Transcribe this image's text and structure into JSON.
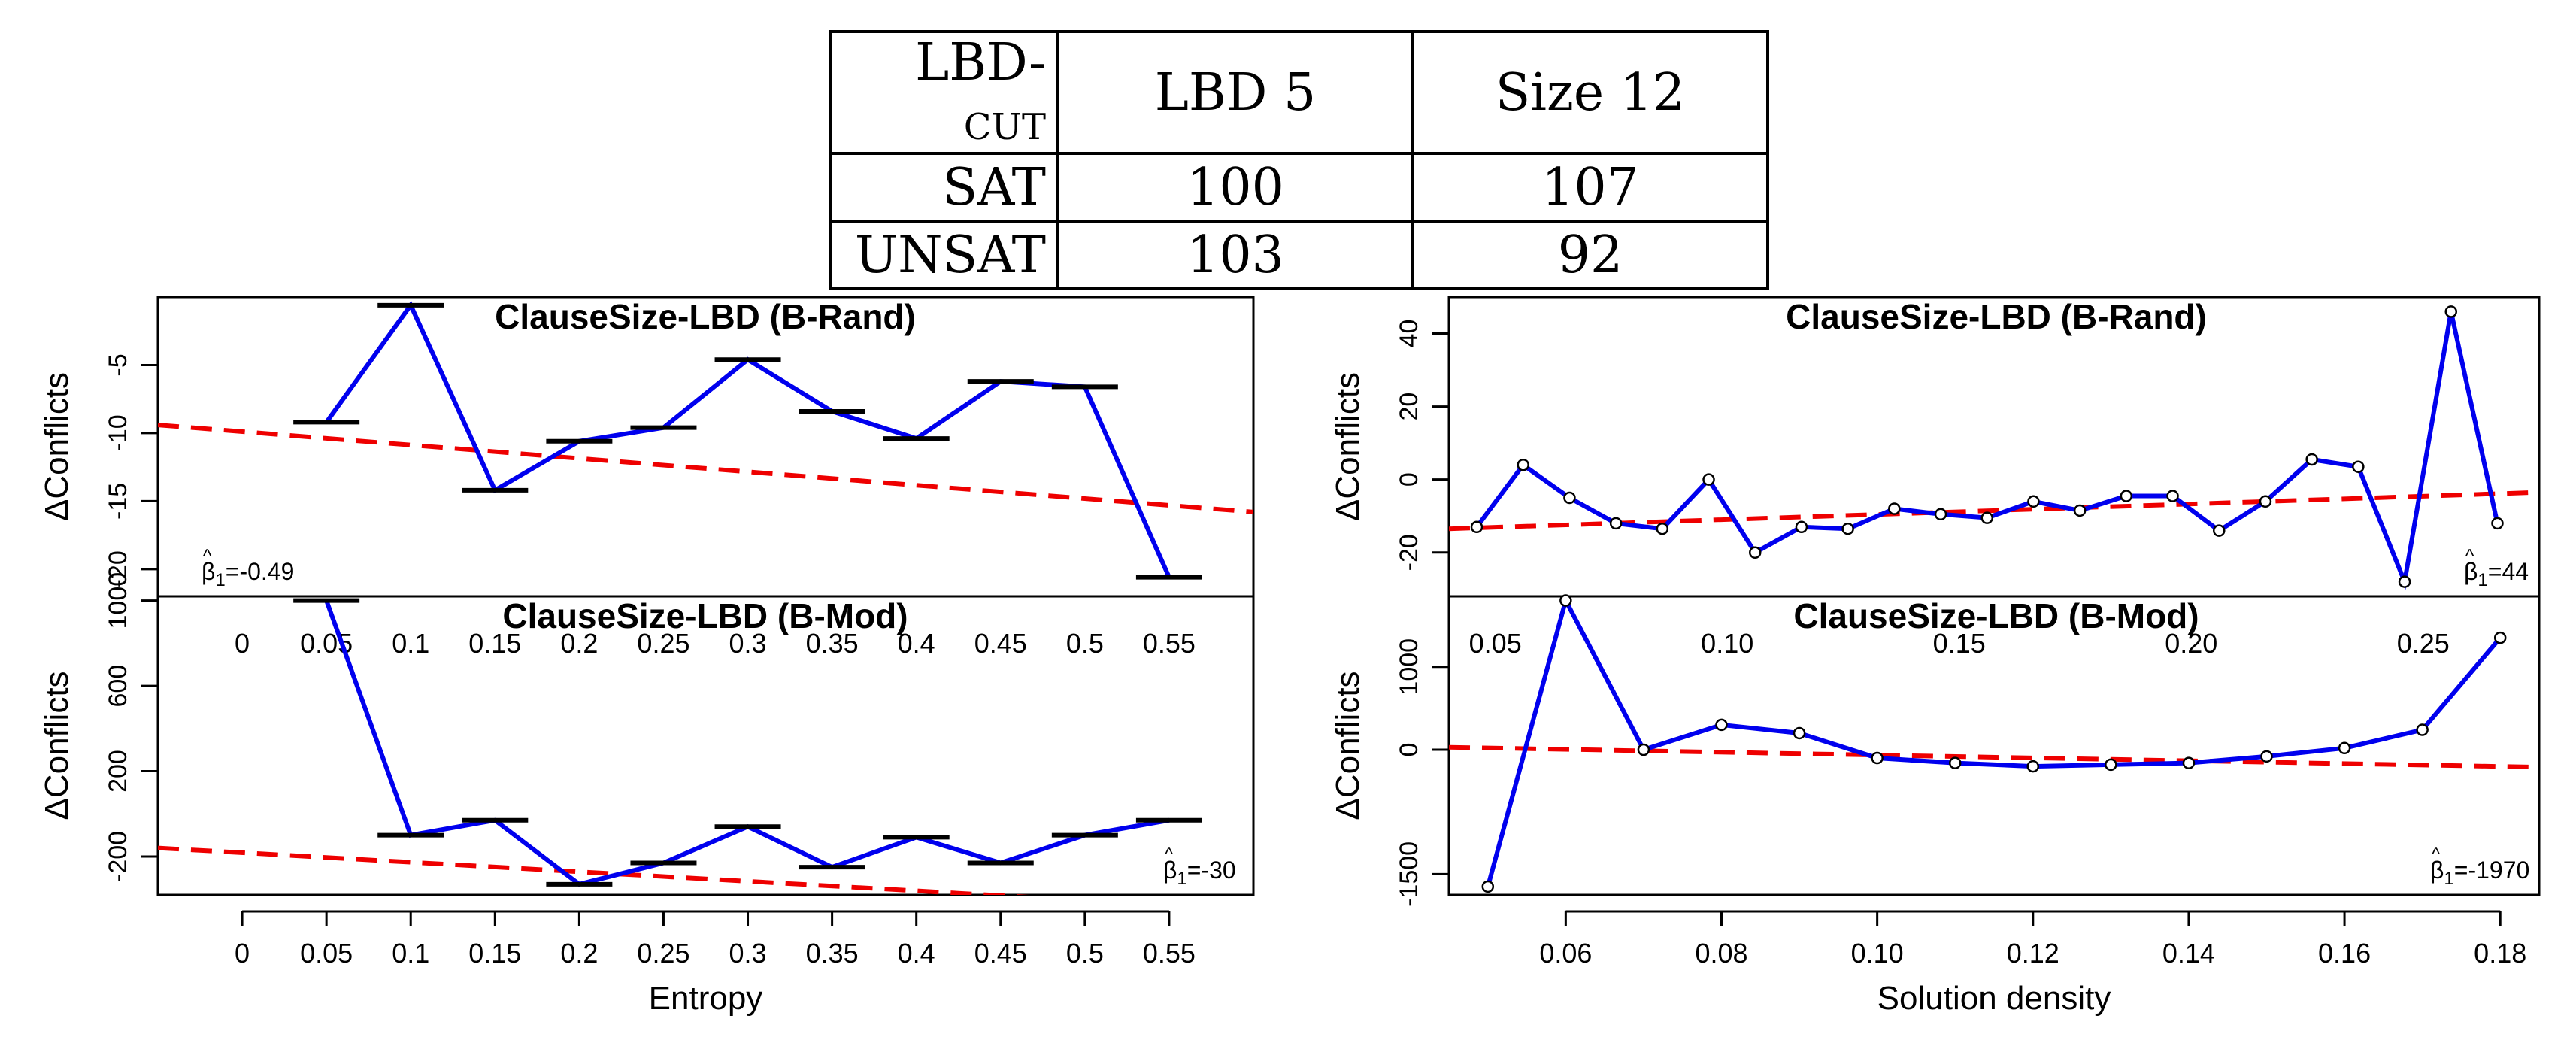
{
  "table": {
    "header": [
      "LBD-cut",
      "LBD 5",
      "Size 12"
    ],
    "rows": [
      {
        "label": "SAT",
        "values": [
          "100",
          "107"
        ]
      },
      {
        "label": "UNSAT",
        "values": [
          "103",
          "92"
        ]
      }
    ]
  },
  "colors": {
    "line": "#0000ee",
    "fit": "#ee0000",
    "axis": "#000000",
    "bar": "#000000"
  },
  "chart_data": [
    {
      "id": "entropy_rand",
      "type": "line",
      "title": "ClauseSize-LBD (B-Rand)",
      "xlabel": "Entropy",
      "ylabel": "ΔConflicts",
      "xlim": [
        -0.05,
        0.6
      ],
      "ylim": [
        -22,
        0
      ],
      "x": [
        0.05,
        0.1,
        0.15,
        0.2,
        0.25,
        0.3,
        0.35,
        0.4,
        0.45,
        0.5,
        0.55
      ],
      "y": [
        -9.2,
        -0.6,
        -14.2,
        -10.6,
        -9.6,
        -4.6,
        -8.4,
        -10.4,
        -6.2,
        -6.6,
        -20.6
      ],
      "markers": "bar",
      "yticks": [
        -5,
        -10,
        -15,
        -20
      ],
      "ytick_labels": [
        "-5",
        "-10",
        "-15",
        "-20"
      ],
      "fit": {
        "x": [
          -0.05,
          0.6
        ],
        "y": [
          -9.4,
          -15.8
        ]
      },
      "beta_label": "1=-0.49"
    },
    {
      "id": "entropy_mod",
      "type": "line",
      "title": "ClauseSize-LBD (B-Mod)",
      "xlabel": "Entropy",
      "ylabel": "ΔConflicts",
      "xlim": [
        -0.05,
        0.6
      ],
      "ylim": [
        -380,
        1020
      ],
      "x": [
        0.05,
        0.1,
        0.15,
        0.2,
        0.25,
        0.3,
        0.35,
        0.4,
        0.45,
        0.5,
        0.55
      ],
      "y": [
        1000,
        -100,
        -30,
        -330,
        -230,
        -60,
        -250,
        -110,
        -230,
        -100,
        -30
      ],
      "markers": "bar",
      "yticks": [
        1000,
        600,
        200,
        -200
      ],
      "ytick_labels": [
        "1000",
        "600",
        "200",
        "-200"
      ],
      "fit": {
        "x": [
          -0.05,
          0.6
        ],
        "y": [
          -160,
          -450
        ]
      },
      "beta_label": "1=-30",
      "xticks": [
        0,
        0.05,
        0.1,
        0.15,
        0.2,
        0.25,
        0.3,
        0.35,
        0.4,
        0.45,
        0.5,
        0.55
      ],
      "xtick_labels": [
        "0",
        "0.05",
        "0.1",
        "0.15",
        "0.2",
        "0.25",
        "0.3",
        "0.35",
        "0.4",
        "0.45",
        "0.5",
        "0.55"
      ],
      "overlay_xtick_labels": [
        "0",
        "0.05",
        "0.1",
        "0.15",
        "0.2",
        "0.25",
        "0.3",
        "0.35",
        "0.4",
        "0.45",
        "0.5",
        "0.55"
      ]
    },
    {
      "id": "density_rand",
      "type": "line",
      "title": "ClauseSize-LBD (B-Rand)",
      "xlabel": "Solution density",
      "ylabel": "ΔConflicts",
      "xlim": [
        0.04,
        0.275
      ],
      "ylim": [
        -32,
        50
      ],
      "x": [
        0.046,
        0.056,
        0.066,
        0.076,
        0.086,
        0.096,
        0.106,
        0.116,
        0.126,
        0.136,
        0.146,
        0.156,
        0.166,
        0.176,
        0.186,
        0.196,
        0.206,
        0.216,
        0.226,
        0.236,
        0.246,
        0.256,
        0.266
      ],
      "y": [
        -13,
        4,
        -5,
        -12,
        -13.5,
        0,
        -20,
        -13,
        -13.5,
        -8,
        -9.5,
        -10.5,
        -6,
        -8.5,
        -4.5,
        -4.5,
        -14,
        -6,
        5.5,
        3.5,
        -28,
        46,
        -12
      ],
      "markers": "circle",
      "yticks": [
        40,
        20,
        0,
        -20
      ],
      "ytick_labels": [
        "40",
        "20",
        "0",
        "-20"
      ],
      "fit": {
        "x": [
          0.04,
          0.275
        ],
        "y": [
          -13.5,
          -3.5
        ]
      },
      "beta_label": "1=44",
      "overlay_xtick_labels": [
        "0.05",
        "0.10",
        "0.15",
        "0.20",
        "0.25"
      ],
      "overlay_xticks": [
        0.05,
        0.1,
        0.15,
        0.2,
        0.25
      ]
    },
    {
      "id": "density_mod",
      "type": "line",
      "title": "ClauseSize-LBD (B-Mod)",
      "xlabel": "Solution density",
      "ylabel": "ΔConflicts",
      "xlim": [
        0.045,
        0.185
      ],
      "ylim": [
        -1750,
        1850
      ],
      "x": [
        0.05,
        0.06,
        0.07,
        0.08,
        0.09,
        0.1,
        0.11,
        0.12,
        0.13,
        0.14,
        0.15,
        0.16,
        0.17,
        0.18
      ],
      "y": [
        -1650,
        1800,
        0,
        300,
        200,
        -100,
        -160,
        -200,
        -180,
        -160,
        -80,
        20,
        240,
        1350
      ],
      "markers": "circle",
      "yticks": [
        1000,
        0,
        -1500
      ],
      "ytick_labels": [
        "1000",
        "0",
        "-1500"
      ],
      "fit": {
        "x": [
          0.045,
          0.185
        ],
        "y": [
          30,
          -210
        ]
      },
      "beta_label": "1=-1970",
      "xticks": [
        0.06,
        0.08,
        0.1,
        0.12,
        0.14,
        0.16,
        0.18
      ],
      "xtick_labels": [
        "0.06",
        "0.08",
        "0.10",
        "0.12",
        "0.14",
        "0.16",
        "0.18"
      ]
    }
  ]
}
